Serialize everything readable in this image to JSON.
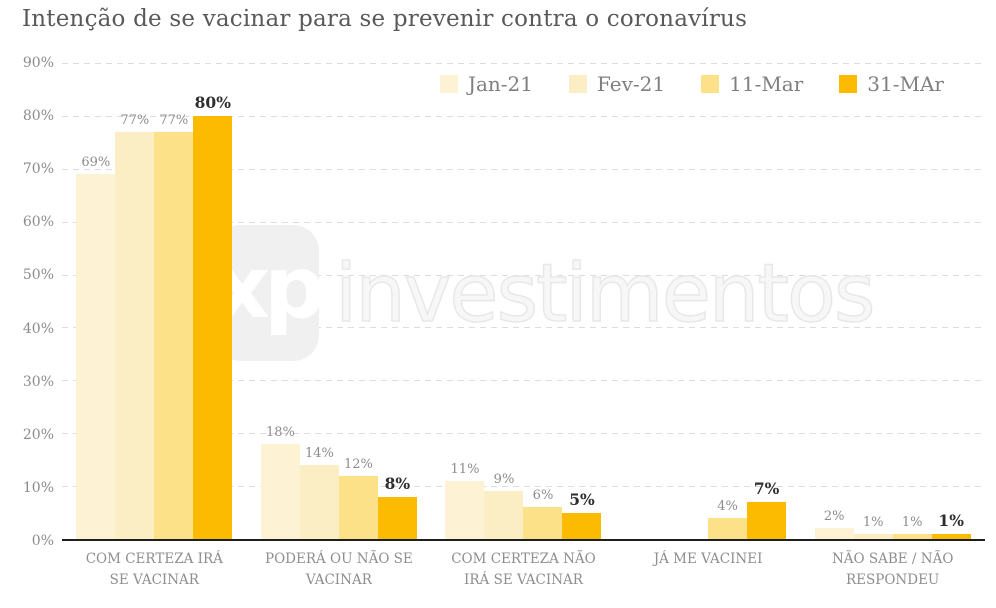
{
  "title": "Intenção de se vacinar para se prevenir contra o coronavírus",
  "watermark": {
    "logo_text": "xp",
    "name": "investimentos"
  },
  "chart_data": {
    "type": "bar",
    "title": "Intenção de se vacinar para se prevenir contra o coronavírus",
    "categories": [
      "COM CERTEZA IRÁ SE VACINAR",
      "PODERÁ OU NÃO SE VACINAR",
      "COM CERTEZA NÃO IRÁ SE VACINAR",
      "JÁ ME VACINEI",
      "NÃO SABE / NÃO RESPONDEU"
    ],
    "series": [
      {
        "name": "Jan-21",
        "color": "#FDF2D4",
        "emphasis": false,
        "values": [
          69,
          18,
          11,
          null,
          2
        ]
      },
      {
        "name": "Fev-21",
        "color": "#FBEEC5",
        "emphasis": false,
        "values": [
          77,
          14,
          9,
          null,
          1
        ]
      },
      {
        "name": "11-Mar",
        "color": "#FDE189",
        "emphasis": false,
        "values": [
          77,
          12,
          6,
          4,
          1
        ]
      },
      {
        "name": "31-MAr",
        "color": "#FCBB00",
        "emphasis": true,
        "values": [
          80,
          8,
          5,
          7,
          1
        ]
      }
    ],
    "xlabel": "",
    "ylabel": "",
    "ylim": [
      0,
      90
    ],
    "yticks": [
      "90%",
      "80%",
      "70%",
      "60%",
      "50%",
      "40%",
      "30%",
      "20%",
      "10%",
      "0%"
    ],
    "value_label_suffix": "%",
    "grid": "horizontal-dashed",
    "legend_position": "top-right"
  }
}
